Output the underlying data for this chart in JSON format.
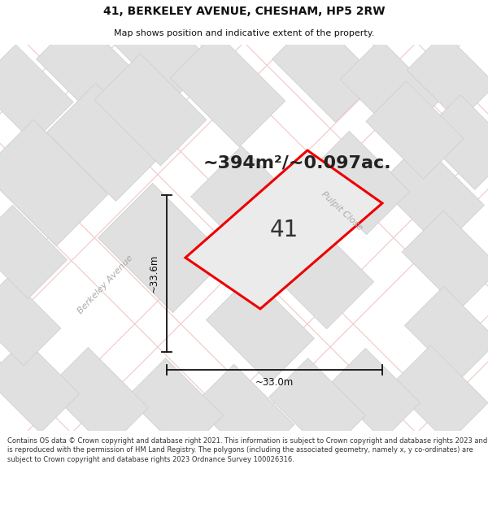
{
  "title": "41, BERKELEY AVENUE, CHESHAM, HP5 2RW",
  "subtitle": "Map shows position and indicative extent of the property.",
  "area_text": "~394m²/~0.097ac.",
  "label_41": "41",
  "dim_height": "~33.6m",
  "dim_width": "~33.0m",
  "street_berkeley": "Berkeley Avenue",
  "street_pulpit": "Pulpit Close",
  "footer": "Contains OS data © Crown copyright and database right 2021. This information is subject to Crown copyright and database rights 2023 and is reproduced with the permission of HM Land Registry. The polygons (including the associated geometry, namely x, y co-ordinates) are subject to Crown copyright and database rights 2023 Ordnance Survey 100026316.",
  "bg_color": "#ffffff",
  "map_bg": "#f2f2f2",
  "block_color": "#e0e0e0",
  "block_edge": "#cccccc",
  "road_fill_color": "#ffffff",
  "road_line_color": "#f0c8c8",
  "road_center_color": "#c8c8c8",
  "plot_outline_color": "#ee0000",
  "plot_fill_color": "#ebebeb",
  "dim_line_color": "#111111",
  "street_text_color": "#aaaaaa",
  "title_color": "#111111",
  "area_text_color": "#222222",
  "footer_color": "#333333",
  "title_fontsize": 10,
  "subtitle_fontsize": 8,
  "area_fontsize": 16,
  "label_fontsize": 20,
  "dim_fontsize": 8.5,
  "street_fontsize": 8,
  "footer_fontsize": 6
}
